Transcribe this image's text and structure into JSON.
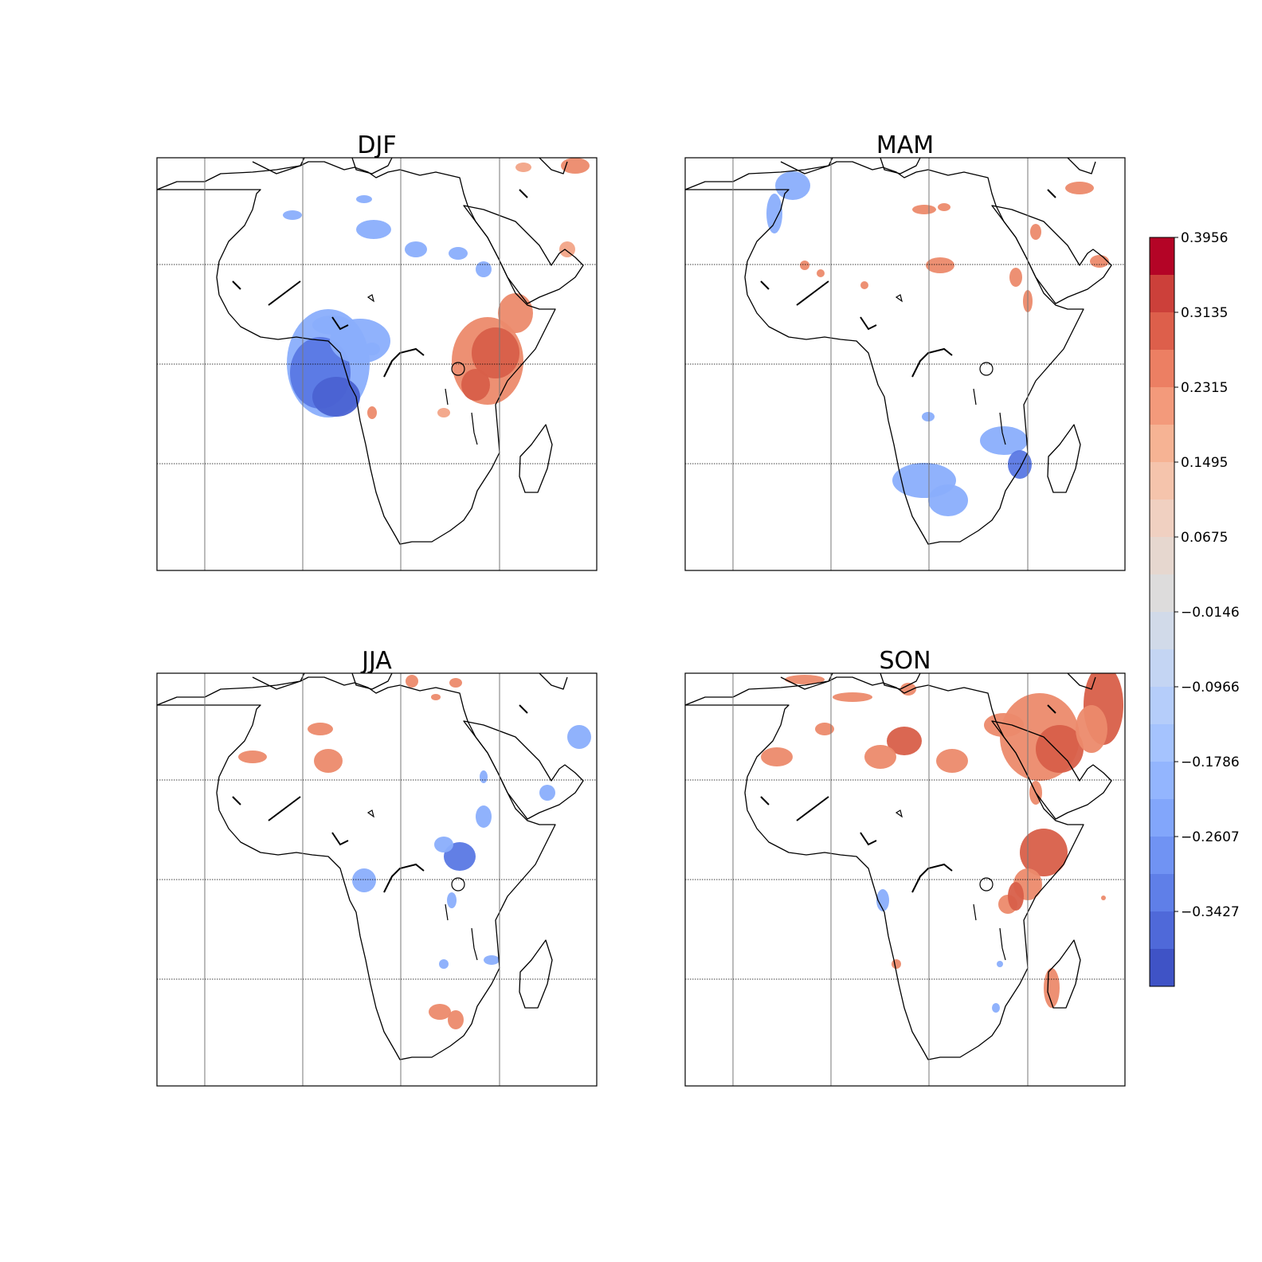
{
  "panels": [
    {
      "key": "djf",
      "title": "DJF"
    },
    {
      "key": "mam",
      "title": "MAM"
    },
    {
      "key": "jja",
      "title": "JJA"
    },
    {
      "key": "son",
      "title": "SON"
    }
  ],
  "colorbar": {
    "tick_labels": [
      "0.3956",
      "0.3135",
      "0.2315",
      "0.1495",
      "0.0675",
      "−0.0146",
      "−0.0966",
      "−0.1786",
      "−0.2607",
      "−0.3427"
    ],
    "colors": [
      "#b40426",
      "#cc403a",
      "#dd5f4b",
      "#ec7f63",
      "#f39a7b",
      "#f6b394",
      "#f5c4ac",
      "#f0d0c1",
      "#e6d7cf",
      "#dddcdc",
      "#d1dae9",
      "#c4d5f3",
      "#b5cdfa",
      "#a5c3fe",
      "#93b5fe",
      "#82a6fb",
      "#7093f3",
      "#5f7fe8",
      "#4f69d9",
      "#3f53c6"
    ]
  },
  "colors": {
    "positive_strong": "#d85f49",
    "positive": "#ec8a6c",
    "positive_light": "#f2a487",
    "negative": "#8aaefc",
    "negative_strong": "#5a78e4",
    "negative_deep": "#4a62d2"
  }
}
